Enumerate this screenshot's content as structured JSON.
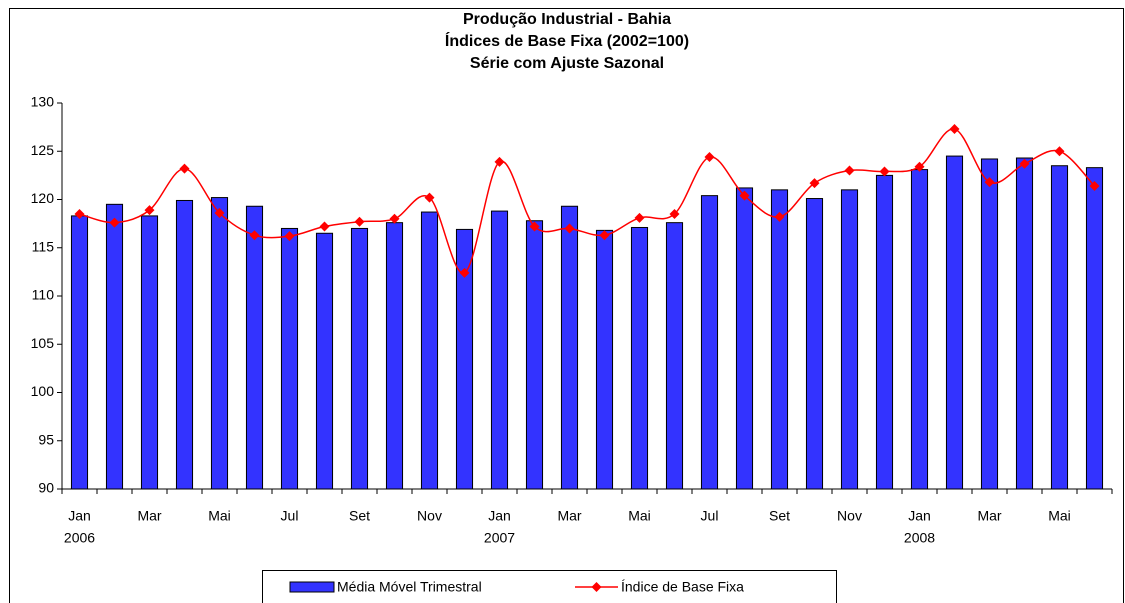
{
  "chart_data": {
    "type": "bar_line",
    "title": "Produção Industrial - Bahia",
    "subtitle": [
      "Índices de Base Fixa (2002=100)",
      "Série com Ajuste Sazonal"
    ],
    "categories": [
      "Jan",
      null,
      "Mar",
      null,
      "Mai",
      null,
      "Jul",
      null,
      "Set",
      null,
      "Nov",
      null,
      "Jan",
      null,
      "Mar",
      null,
      "Mai",
      null,
      "Jul",
      null,
      "Set",
      null,
      "Nov",
      null,
      "Jan",
      null,
      "Mar",
      null,
      "Mai",
      null
    ],
    "years": [
      "2006",
      null,
      null,
      null,
      null,
      null,
      null,
      null,
      null,
      null,
      null,
      null,
      "2007",
      null,
      null,
      null,
      null,
      null,
      null,
      null,
      null,
      null,
      null,
      null,
      "2008",
      null,
      null,
      null,
      null,
      null
    ],
    "series": [
      {
        "name": "Média Móvel Trimestral",
        "type": "bar",
        "color": "#3333ff",
        "values": [
          118.3,
          119.5,
          118.3,
          119.9,
          120.2,
          119.3,
          117.0,
          116.5,
          117.0,
          117.6,
          118.7,
          116.9,
          118.8,
          117.8,
          119.3,
          116.8,
          117.1,
          117.6,
          120.4,
          121.2,
          121.0,
          120.1,
          121.0,
          122.5,
          123.1,
          124.5,
          124.2,
          124.3,
          123.5,
          123.3
        ]
      },
      {
        "name": "Índice de Base Fixa",
        "type": "line",
        "color": "#ff0000",
        "values": [
          118.5,
          117.6,
          118.9,
          123.2,
          118.6,
          116.3,
          116.2,
          117.2,
          117.7,
          118.0,
          120.2,
          112.4,
          123.9,
          117.2,
          117.0,
          116.3,
          118.1,
          118.5,
          124.4,
          120.4,
          118.2,
          121.7,
          123.0,
          122.9,
          123.4,
          127.3,
          121.8,
          123.7,
          125.0,
          121.4
        ]
      }
    ],
    "ylim": [
      90,
      130
    ],
    "yticks": [
      90,
      95,
      100,
      105,
      110,
      115,
      120,
      125,
      130
    ],
    "grid": false,
    "legend": "bottom"
  }
}
